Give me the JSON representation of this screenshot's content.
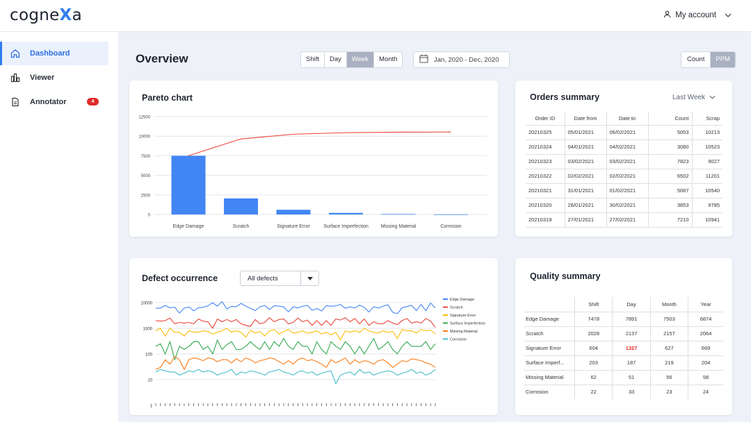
{
  "brand": {
    "logo_pre": "cogne",
    "logo_x": "X",
    "logo_post": "a"
  },
  "account": {
    "label": "My account"
  },
  "sidebar": {
    "items": [
      {
        "label": "Dashboard",
        "icon": "home-icon",
        "active": true
      },
      {
        "label": "Viewer",
        "icon": "bar-chart-icon"
      },
      {
        "label": "Annotator",
        "icon": "document-icon",
        "badge": "4"
      }
    ]
  },
  "header": {
    "title": "Overview",
    "periods": [
      "Shift",
      "Day",
      "Week",
      "Month"
    ],
    "selected_period": "Week",
    "date_range": "Jan, 2020 - Dec, 2020",
    "units": [
      "Count",
      "PPM"
    ],
    "selected_unit": "PPM"
  },
  "pareto": {
    "title": "Pareto chart"
  },
  "orders": {
    "title": "Orders summary",
    "filter": "Last Week",
    "columns": [
      "Order ID",
      "Date from",
      "Date to",
      "Count",
      "Scrap"
    ],
    "rows": [
      [
        "20210325",
        "05/01/2021",
        "06/02/2021",
        "5053",
        "10213"
      ],
      [
        "20210324",
        "04/01/2021",
        "04/02/2021",
        "3080",
        "10523"
      ],
      [
        "20210323",
        "03/02/2021",
        "03/02/2021",
        "7823",
        "9027"
      ],
      [
        "20210322",
        "02/02/2021",
        "02/02/2021",
        "6502",
        "11201"
      ],
      [
        "20210321",
        "31/01/2021",
        "01/02/2021",
        "5087",
        "10540"
      ],
      [
        "20210320",
        "28/01/2021",
        "30/02/2021",
        "3853",
        "9785"
      ],
      [
        "20210319",
        "27/01/2021",
        "27/02/2021",
        "7210",
        "10941"
      ]
    ]
  },
  "defects": {
    "title": "Defect occurrence",
    "filter": "All defects"
  },
  "quality": {
    "title": "Quality summary",
    "columns": [
      "",
      "Shift",
      "Day",
      "Month",
      "Year"
    ],
    "rows": [
      [
        "Edge Damage",
        "7478",
        "7891",
        "7503",
        "6874"
      ],
      [
        "Scratch",
        "2028",
        "2137",
        "2157",
        "2064"
      ],
      [
        "Signature Error",
        "604",
        "1327",
        "627",
        "669"
      ],
      [
        "Surface Imperf...",
        "203",
        "187",
        "219",
        "204"
      ],
      [
        "Missing Material",
        "62",
        "51",
        "56",
        "58"
      ],
      [
        "Corrosion",
        "22",
        "33",
        "23",
        "24"
      ]
    ],
    "highlight_color": "#e02b2b"
  },
  "colors": {
    "accent": "#2f7df0",
    "bar": "#4285f4",
    "pareto_line": "#ea4335"
  },
  "chart_data": [
    {
      "type": "bar",
      "categories": [
        "Edge Damage",
        "Scratch",
        "Signature Error",
        "Surface Imperfection",
        "Missing Material",
        "Corrosion"
      ],
      "values": [
        7500,
        2050,
        600,
        200,
        60,
        20
      ],
      "cumulative": [
        7500,
        9650,
        10250,
        10450,
        10510,
        10530
      ],
      "ylim": [
        0,
        12500
      ],
      "yticks": [
        "0",
        "2500",
        "5000",
        "7500",
        "10000",
        "12500"
      ],
      "grid": true
    },
    {
      "type": "line",
      "log_y": true,
      "yticks": [
        "1",
        "10",
        "100",
        "1000",
        "10000"
      ],
      "legend_position": "right",
      "series": [
        {
          "name": "Edge Damage",
          "color": "#4285f4",
          "values": [
            6000,
            6100,
            7800,
            6300,
            6600,
            3900,
            6100,
            6800,
            4800,
            6300,
            6600,
            7500,
            9900,
            7300,
            11000,
            5600,
            7200,
            6900,
            9300,
            7300,
            6000,
            4900,
            6900,
            7800,
            5400,
            7600,
            7300,
            6800,
            4400,
            6900,
            6200,
            7300,
            7800,
            5000,
            5900,
            4700,
            7600,
            7200,
            7500,
            8500,
            6000,
            6900,
            6200,
            8000,
            6600,
            4300,
            7000,
            6100,
            7300,
            8200,
            4200,
            3700,
            6300,
            7000,
            7900,
            4900,
            8500,
            4800,
            9500,
            6200
          ]
        },
        {
          "name": "Scratch",
          "color": "#ea4335",
          "values": [
            2000,
            1900,
            2000,
            2500,
            1500,
            1700,
            1600,
            1700,
            1500,
            2300,
            1900,
            1800,
            1000,
            2300,
            1800,
            2200,
            1800,
            2200,
            1500,
            1300,
            1200,
            2200,
            1500,
            1700,
            2600,
            1800,
            2200,
            2300,
            1500,
            1700,
            2500,
            1800,
            2100,
            1300,
            2000,
            1300,
            2000,
            1300,
            2300,
            2100,
            2600,
            1800,
            2400,
            1500,
            2300,
            1300,
            1800,
            1500,
            1500,
            2000,
            1600,
            1400,
            2000,
            2400,
            1600,
            1800,
            1600,
            2400,
            1900,
            1100
          ]
        },
        {
          "name": "Signature Error",
          "color": "#fbbc05",
          "values": [
            800,
            1000,
            500,
            1000,
            700,
            700,
            500,
            800,
            700,
            700,
            800,
            750,
            600,
            700,
            800,
            1000,
            700,
            800,
            700,
            450,
            850,
            650,
            750,
            500,
            800,
            900,
            600,
            750,
            900,
            650,
            700,
            800,
            650,
            700,
            800,
            600,
            700,
            550,
            700,
            350,
            800,
            700,
            800,
            700,
            1000,
            800,
            700,
            650,
            800,
            700,
            750,
            400,
            900,
            800,
            800,
            650,
            900,
            800,
            850,
            600
          ]
        },
        {
          "name": "Surface Imperfection",
          "color": "#34a853",
          "values": [
            200,
            250,
            100,
            300,
            60,
            200,
            150,
            200,
            300,
            300,
            150,
            200,
            100,
            350,
            150,
            230,
            300,
            150,
            150,
            200,
            300,
            200,
            150,
            300,
            150,
            300,
            200,
            400,
            200,
            150,
            300,
            200,
            200,
            100,
            300,
            150,
            100,
            300,
            200,
            150,
            300,
            200,
            100,
            200,
            100,
            200,
            400,
            150,
            200,
            300,
            150,
            100,
            200,
            300,
            200,
            200,
            200,
            300,
            150,
            250
          ]
        },
        {
          "name": "Missing Material",
          "color": "#fa7b17",
          "values": [
            25,
            30,
            60,
            40,
            80,
            60,
            25,
            60,
            70,
            65,
            55,
            70,
            65,
            50,
            60,
            60,
            45,
            65,
            50,
            70,
            60,
            45,
            55,
            60,
            70,
            65,
            50,
            40,
            55,
            40,
            60,
            70,
            55,
            60,
            50,
            40,
            30,
            60,
            45,
            55,
            70,
            40,
            60,
            45,
            55,
            50,
            40,
            55,
            60,
            45,
            30,
            40,
            55,
            50,
            65,
            60,
            55,
            45,
            40,
            30
          ]
        },
        {
          "name": "Corrosion",
          "color": "#46bdc6",
          "values": [
            20,
            25,
            22,
            20,
            20,
            15,
            18,
            22,
            20,
            25,
            20,
            22,
            20,
            15,
            18,
            20,
            25,
            15,
            20,
            18,
            22,
            20,
            18,
            15,
            20,
            22,
            25,
            20,
            18,
            15,
            20,
            22,
            18,
            20,
            15,
            18,
            20,
            22,
            7,
            15,
            18,
            20,
            15,
            25,
            18,
            20,
            15,
            18,
            20,
            22,
            20,
            15,
            18,
            20,
            25,
            18,
            20,
            15,
            18,
            25
          ]
        }
      ]
    }
  ]
}
